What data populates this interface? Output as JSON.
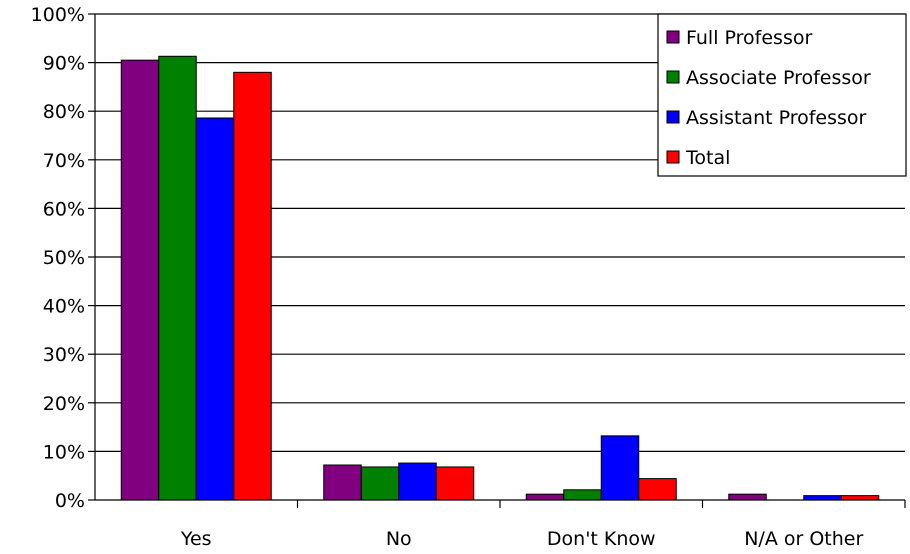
{
  "chart_data": {
    "type": "bar",
    "categories": [
      "Yes",
      "No",
      "Don't Know",
      "N/A or Other"
    ],
    "series": [
      {
        "name": "Full Professor",
        "color": "#800080",
        "values": [
          90.5,
          7.2,
          1.2,
          1.2
        ]
      },
      {
        "name": "Associate Professor",
        "color": "#008000",
        "values": [
          91.3,
          6.8,
          2.1,
          0
        ]
      },
      {
        "name": "Assistant Professor",
        "color": "#0000FF",
        "values": [
          78.6,
          7.6,
          13.2,
          0.9
        ]
      },
      {
        "name": "Total",
        "color": "#FF0000",
        "values": [
          88.0,
          6.8,
          4.4,
          0.9
        ]
      }
    ],
    "ylim": [
      0,
      100
    ],
    "yticks": [
      "0%",
      "10%",
      "20%",
      "30%",
      "40%",
      "50%",
      "60%",
      "70%",
      "80%",
      "90%",
      "100%"
    ],
    "grid": true,
    "legend_position": "top-right"
  }
}
